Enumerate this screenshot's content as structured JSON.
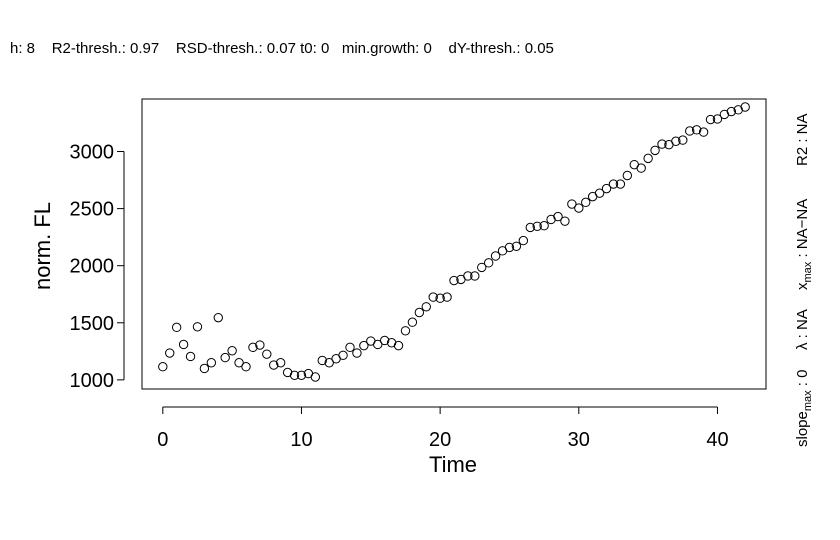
{
  "header": {
    "params": "h: 8    R2-thresh.: 0.97    RSD-thresh.: 0.07 t0: 0   min.growth: 0    dY-thresh.: 0.05"
  },
  "side": {
    "slope_main": "slope",
    "slope_sub": "max",
    "slope_rest": " : 0",
    "lambda": "λ : NA",
    "x_main": "x",
    "x_sub": "max",
    "x_rest": " : NA−NA",
    "r2": "R2 : NA"
  },
  "chart_data": {
    "type": "scatter",
    "xlabel": "Time",
    "ylabel": "norm. FL",
    "xlim": [
      -1.5,
      43.5
    ],
    "ylim": [
      920,
      3460
    ],
    "xticks": [
      0,
      10,
      20,
      30,
      40
    ],
    "yticks": [
      1000,
      1500,
      2000,
      2500,
      3000
    ],
    "grid": false,
    "series": [
      {
        "marker": "open-circle",
        "x": [
          0,
          0.5,
          1,
          1.5,
          2,
          2.5,
          3,
          3.5,
          4,
          4.5,
          5,
          5.5,
          6,
          6.5,
          7,
          7.5,
          8,
          8.5,
          9,
          9.5,
          10,
          10.5,
          11,
          11.5,
          12,
          12.5,
          13,
          13.5,
          14,
          14.5,
          15,
          15.5,
          16,
          16.5,
          17,
          17.5,
          18,
          18.5,
          19,
          19.5,
          20,
          20.5,
          21,
          21.5,
          22,
          22.5,
          23,
          23.5,
          24,
          24.5,
          25,
          25.5,
          26,
          26.5,
          27,
          27.5,
          28,
          28.5,
          29,
          29.5,
          30,
          30.5,
          31,
          31.5,
          32,
          32.5,
          33,
          33.5,
          34,
          34.5,
          35,
          35.5,
          36,
          36.5,
          37,
          37.5,
          38,
          38.5,
          39,
          39.5,
          40,
          40.5,
          41,
          41.5,
          42
        ],
        "y": [
          1115,
          1235,
          1460,
          1310,
          1205,
          1465,
          1100,
          1150,
          1545,
          1195,
          1255,
          1150,
          1115,
          1285,
          1305,
          1225,
          1130,
          1150,
          1065,
          1040,
          1040,
          1055,
          1025,
          1170,
          1150,
          1185,
          1215,
          1285,
          1235,
          1300,
          1340,
          1310,
          1345,
          1325,
          1300,
          1430,
          1505,
          1590,
          1640,
          1725,
          1715,
          1725,
          1870,
          1880,
          1910,
          1910,
          1985,
          2025,
          2085,
          2130,
          2160,
          2170,
          2220,
          2335,
          2345,
          2350,
          2405,
          2430,
          2390,
          2540,
          2505,
          2555,
          2605,
          2635,
          2675,
          2715,
          2715,
          2790,
          2885,
          2855,
          2940,
          3010,
          3065,
          3060,
          3090,
          3100,
          3180,
          3190,
          3170,
          3280,
          3285,
          3325,
          3350,
          3365,
          3390
        ]
      }
    ]
  }
}
